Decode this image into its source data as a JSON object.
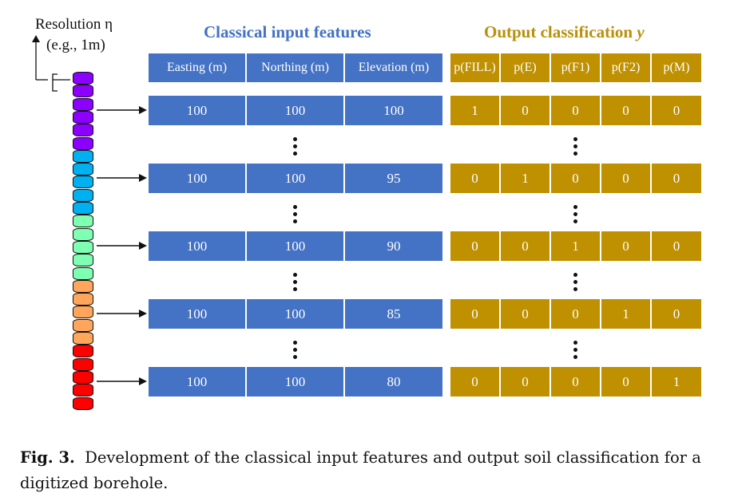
{
  "resolution": {
    "line1": "Resolution η",
    "line2": "(e.g., 1m)"
  },
  "headers": {
    "classical": "Classical input features",
    "output_prefix": "Output classification ",
    "output_var": "y"
  },
  "input_columns": [
    "Easting (m)",
    "Northing (m)",
    "Elevation (m)"
  ],
  "output_columns": [
    "p(FILL)",
    "p(E)",
    "p(F1)",
    "p(F2)",
    "p(M)"
  ],
  "rows": [
    {
      "inputs": [
        "100",
        "100",
        "100"
      ],
      "outputs": [
        "1",
        "0",
        "0",
        "0",
        "0"
      ]
    },
    {
      "inputs": [
        "100",
        "100",
        "95"
      ],
      "outputs": [
        "0",
        "1",
        "0",
        "0",
        "0"
      ]
    },
    {
      "inputs": [
        "100",
        "100",
        "90"
      ],
      "outputs": [
        "0",
        "0",
        "1",
        "0",
        "0"
      ]
    },
    {
      "inputs": [
        "100",
        "100",
        "85"
      ],
      "outputs": [
        "0",
        "0",
        "0",
        "1",
        "0"
      ]
    },
    {
      "inputs": [
        "100",
        "100",
        "80"
      ],
      "outputs": [
        "0",
        "0",
        "0",
        "0",
        "1"
      ]
    }
  ],
  "borehole_layers": [
    {
      "color": "#8B00FF",
      "count": 6
    },
    {
      "color": "#00B0F0",
      "count": 5
    },
    {
      "color": "#7FFFB2",
      "count": 5
    },
    {
      "color": "#FFA65C",
      "count": 5
    },
    {
      "color": "#FF0000",
      "count": 5
    }
  ],
  "colors": {
    "input_blue": "#4472C4",
    "output_gold": "#BF9000"
  },
  "caption": {
    "label": "Fig. 3.",
    "text": "Development of the classical input features and output soil classification for a digitized borehole."
  }
}
